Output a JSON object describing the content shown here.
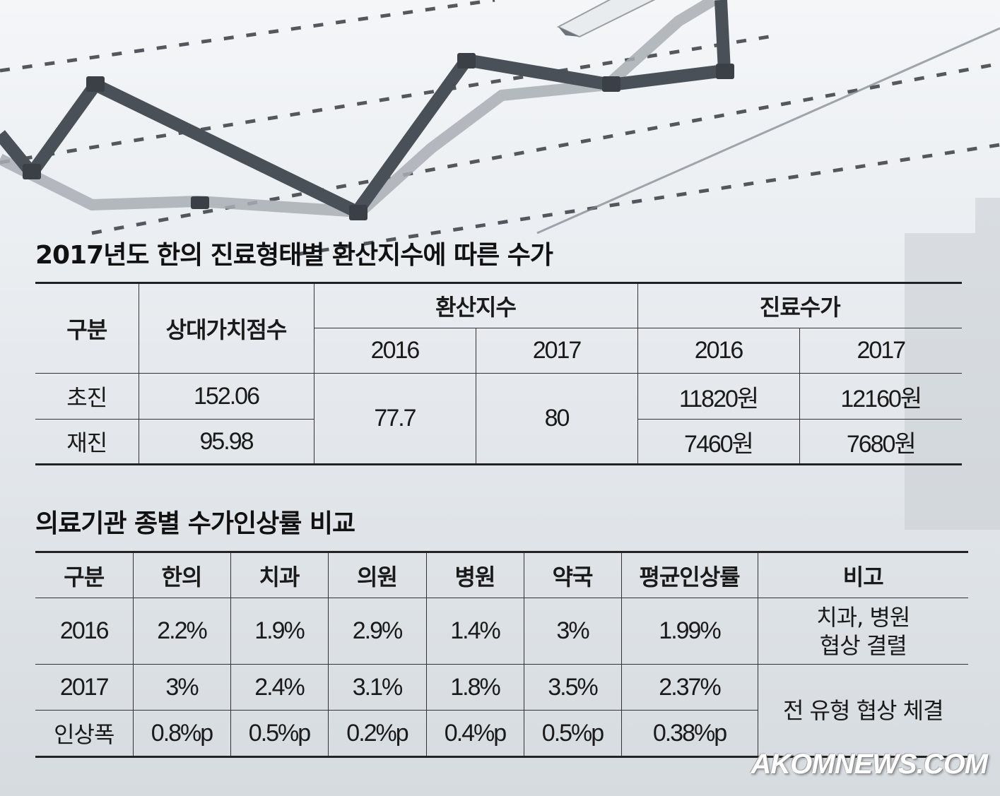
{
  "tuition_table": {
    "title": "2017년도 한의 진료형태별 환산지수에 따른 수가",
    "headers": {
      "category": "구분",
      "relative_value_score": "상대가치점수",
      "conversion_index": "환산지수",
      "medical_fee": "진료수가",
      "year_2016": "2016",
      "year_2017": "2017"
    },
    "rows": [
      {
        "type": "초진",
        "score": "152.06",
        "fee_2016": "11820원",
        "fee_2017": "12160원"
      },
      {
        "type": "재진",
        "score": "95.98",
        "fee_2016": "7460원",
        "fee_2017": "7680원"
      }
    ],
    "conversion_2016": "77.7",
    "conversion_2017": "80"
  },
  "increase_table": {
    "title": "의료기관 종별 수가인상률 비교",
    "headers": [
      "구분",
      "한의",
      "치과",
      "의원",
      "병원",
      "약국",
      "평균인상률",
      "비고"
    ],
    "rows": [
      {
        "label": "2016",
        "values": [
          "2.2%",
          "1.9%",
          "2.9%",
          "1.4%",
          "3%",
          "1.99%"
        ]
      },
      {
        "label": "2017",
        "values": [
          "3%",
          "2.4%",
          "3.1%",
          "1.8%",
          "3.5%",
          "2.37%"
        ]
      },
      {
        "label": "인상폭",
        "values": [
          "0.8%p",
          "0.5%p",
          "0.2%p",
          "0.4%p",
          "0.5%p",
          "0.38%p"
        ]
      }
    ],
    "note_2016_line1": "치과, 병원",
    "note_2016_line2": "협상 결렬",
    "note_2017": "전 유형 협상 체결"
  },
  "watermark": "AKOMNEWS.COM",
  "colors": {
    "background_light": "#f4f6f8",
    "background_dark": "#d6dbe0",
    "chart_line_dark": "#4a5057",
    "chart_line_light": "#a9aeb4",
    "rule": "#222222"
  }
}
